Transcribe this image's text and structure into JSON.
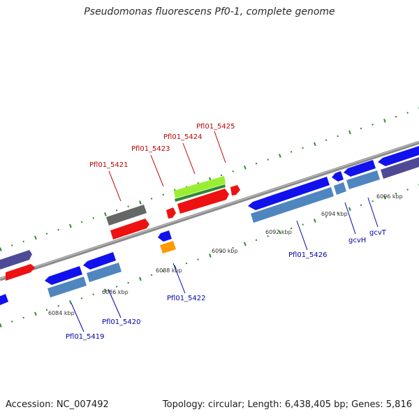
{
  "title": "Pseudomonas fluorescens Pf0-1, complete genome",
  "footer": {
    "accession": "Accession: NC_007492",
    "info": "Topology: circular; Length: 6,438,405 bp; Genes: 5,816"
  },
  "colors": {
    "backbone": "#8a8a8a",
    "tick": "#2f8a2f",
    "forward_label": "#c00000",
    "reverse_label": "#0000b0",
    "red": "#ee1111",
    "blue": "#1111ee",
    "steel": "#4f86c0",
    "slate": "#4f4a95",
    "grey": "#666666",
    "green": "#99ee33",
    "orange": "#ff9900"
  },
  "ticks": [
    {
      "label": "6084 kbp",
      "name": "tick-label-6084"
    },
    {
      "label": "6086 kbp",
      "name": "tick-label-6086"
    },
    {
      "label": "6088 kbp",
      "name": "tick-label-6088"
    },
    {
      "label": "6090 kbp",
      "name": "tick-label-6090"
    },
    {
      "label": "6092 kbp",
      "name": "tick-label-6092"
    },
    {
      "label": "6094 kbp",
      "name": "tick-label-6094"
    },
    {
      "label": "6096 kbp",
      "name": "tick-label-6096"
    }
  ],
  "genes": [
    {
      "label": "Pfl01_5419",
      "strand": "reverse"
    },
    {
      "label": "Pfl01_5420",
      "strand": "reverse"
    },
    {
      "label": "Pfl01_5421",
      "strand": "forward"
    },
    {
      "label": "Pfl01_5422",
      "strand": "reverse"
    },
    {
      "label": "Pfl01_5423",
      "strand": "forward"
    },
    {
      "label": "Pfl01_5424",
      "strand": "forward"
    },
    {
      "label": "Pfl01_5425",
      "strand": "forward"
    },
    {
      "label": "Pfl01_5426",
      "strand": "reverse"
    },
    {
      "label": "gcvH",
      "strand": "reverse"
    },
    {
      "label": "gcvT",
      "strand": "reverse"
    }
  ]
}
